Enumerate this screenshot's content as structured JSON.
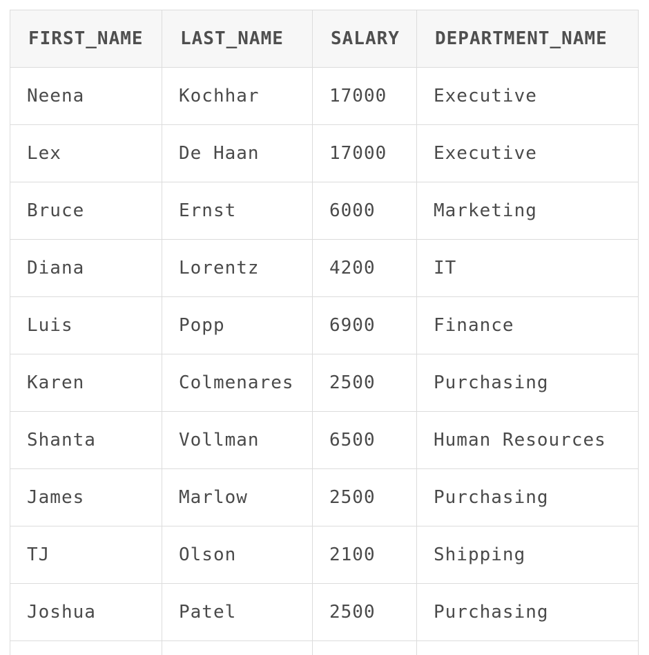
{
  "table": {
    "columns": [
      "FIRST_NAME",
      "LAST_NAME",
      "SALARY",
      "DEPARTMENT_NAME"
    ],
    "rows": [
      [
        "Neena",
        "Kochhar",
        "17000",
        "Executive"
      ],
      [
        "Lex",
        "De Haan",
        "17000",
        "Executive"
      ],
      [
        "Bruce",
        "Ernst",
        "6000",
        "Marketing"
      ],
      [
        "Diana",
        "Lorentz",
        "4200",
        "IT"
      ],
      [
        "Luis",
        "Popp",
        "6900",
        "Finance"
      ],
      [
        "Karen",
        "Colmenares",
        "2500",
        "Purchasing"
      ],
      [
        "Shanta",
        "Vollman",
        "6500",
        "Human Resources"
      ],
      [
        "James",
        "Marlow",
        "2500",
        "Purchasing"
      ],
      [
        "TJ",
        "Olson",
        "2100",
        "Shipping"
      ],
      [
        "Joshua",
        "Patel",
        "2500",
        "Purchasing"
      ]
    ]
  }
}
